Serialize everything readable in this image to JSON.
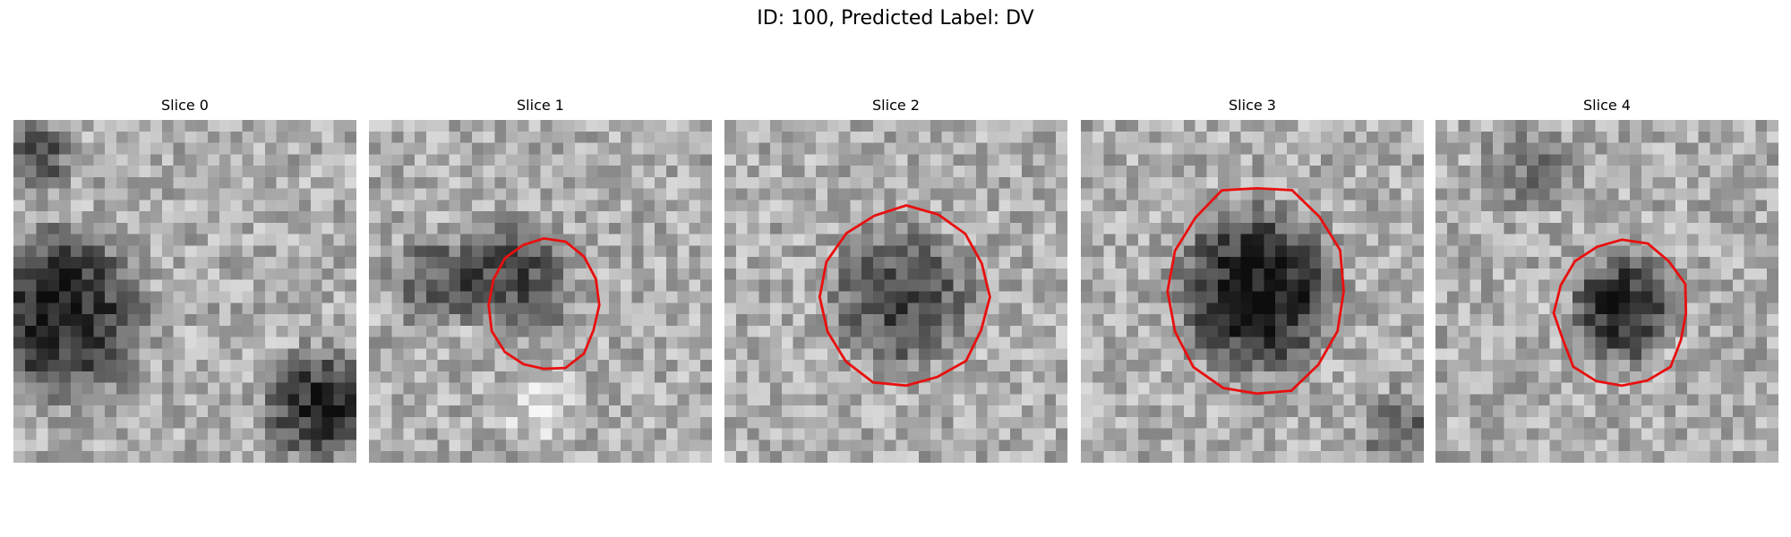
{
  "figure": {
    "title": "ID: 100, Predicted Label: DV",
    "panels": [
      {
        "title": "Slice 0"
      },
      {
        "title": "Slice 1"
      },
      {
        "title": "Slice 2"
      },
      {
        "title": "Slice 3"
      },
      {
        "title": "Slice 4"
      }
    ]
  }
}
